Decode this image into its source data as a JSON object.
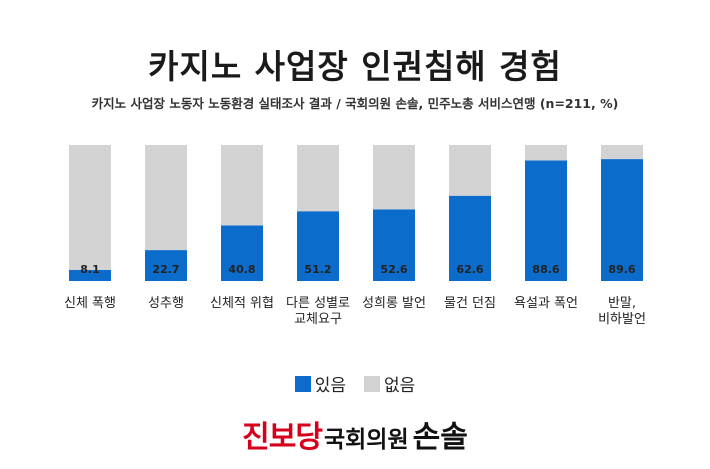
{
  "header": {
    "title": "카지노 사업장 인권침해 경험",
    "subtitle": "카지노 사업장 노동자 노동환경 실태조사 결과 / 국회의원 손솔, 민주노총 서비스연맹 (n=211, %)"
  },
  "colors": {
    "yes": "#0b6ccb",
    "no": "#d3d3d3"
  },
  "chart_data": {
    "type": "bar",
    "stacked": true,
    "categories": [
      [
        "신체 폭행"
      ],
      [
        "성추행"
      ],
      [
        "신체적 위협"
      ],
      [
        "다른 성별로",
        "교체요구"
      ],
      [
        "성희롱 발언"
      ],
      [
        "물건 던짐"
      ],
      [
        "욕설과 폭언"
      ],
      [
        "반말,",
        "비하발언"
      ]
    ],
    "series": [
      {
        "name": "있음",
        "values": [
          8.1,
          22.7,
          40.8,
          51.2,
          52.6,
          62.6,
          88.6,
          89.6
        ],
        "labeled": true
      },
      {
        "name": "없음",
        "values": [
          91.9,
          77.3,
          59.2,
          48.8,
          47.4,
          37.4,
          11.4,
          10.4
        ],
        "labeled": false
      }
    ],
    "ylim": [
      0,
      100
    ],
    "grid": false,
    "legend_position": "bottom"
  },
  "legend": {
    "yes_label": "있음",
    "no_label": "없음"
  },
  "footer": {
    "party": "진보당",
    "role": "국회의원",
    "name": "손솔"
  }
}
